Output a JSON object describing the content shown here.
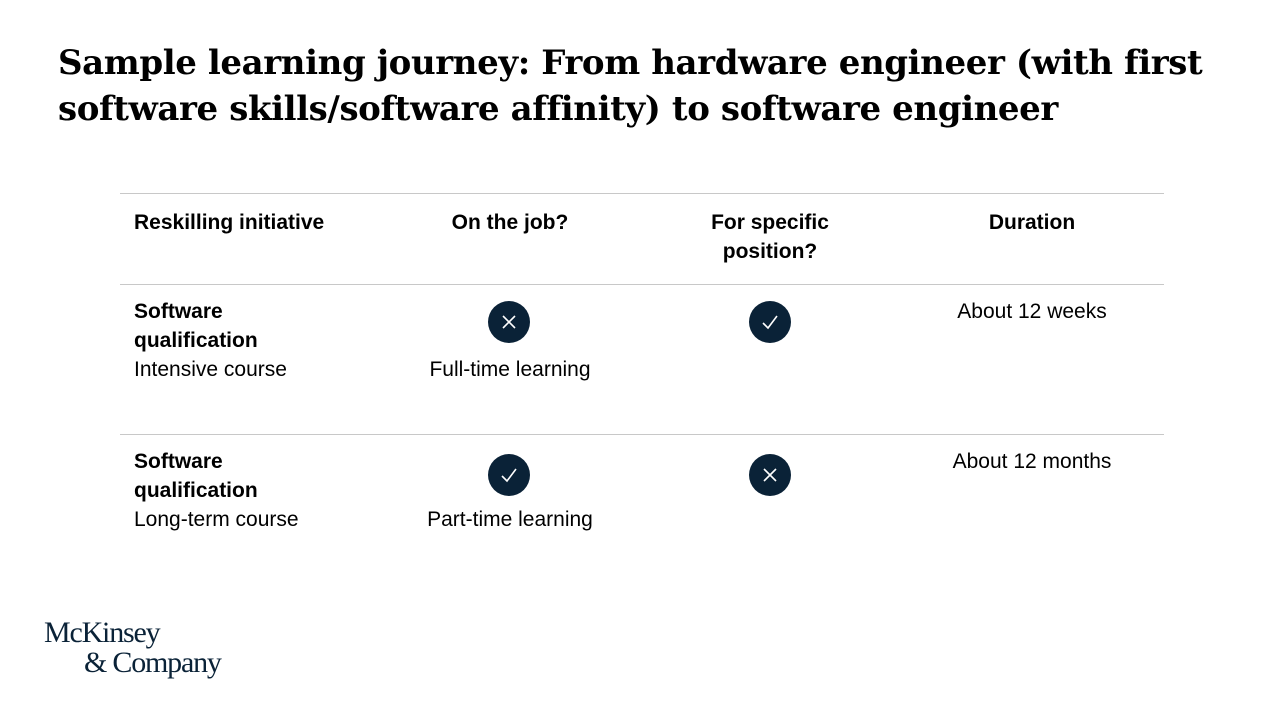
{
  "title": "Sample learning journey: From hardware engineer (with first software skills/software affinity) to software engineer",
  "table": {
    "headers": [
      "Reskilling initiative",
      "On the job?",
      "For specific position?",
      "Duration"
    ],
    "rows": [
      {
        "initiative_bold": "Software qualification",
        "initiative_sub": "Intensive course",
        "on_the_job_icon": "cross-icon",
        "on_the_job_note": "Full-time learning",
        "specific_position_icon": "check-icon",
        "duration": "About 12 weeks"
      },
      {
        "initiative_bold": "Software qualification",
        "initiative_sub": "Long-term course",
        "on_the_job_icon": "check-icon",
        "on_the_job_note": "Part-time learning",
        "specific_position_icon": "cross-icon",
        "duration": "About 12 months"
      }
    ]
  },
  "logo": {
    "line1": "McKinsey",
    "line2": "& Company"
  },
  "colors": {
    "icon_fill": "#0a2237",
    "rule": "#c8c8c8",
    "logo": "#0a2237"
  }
}
